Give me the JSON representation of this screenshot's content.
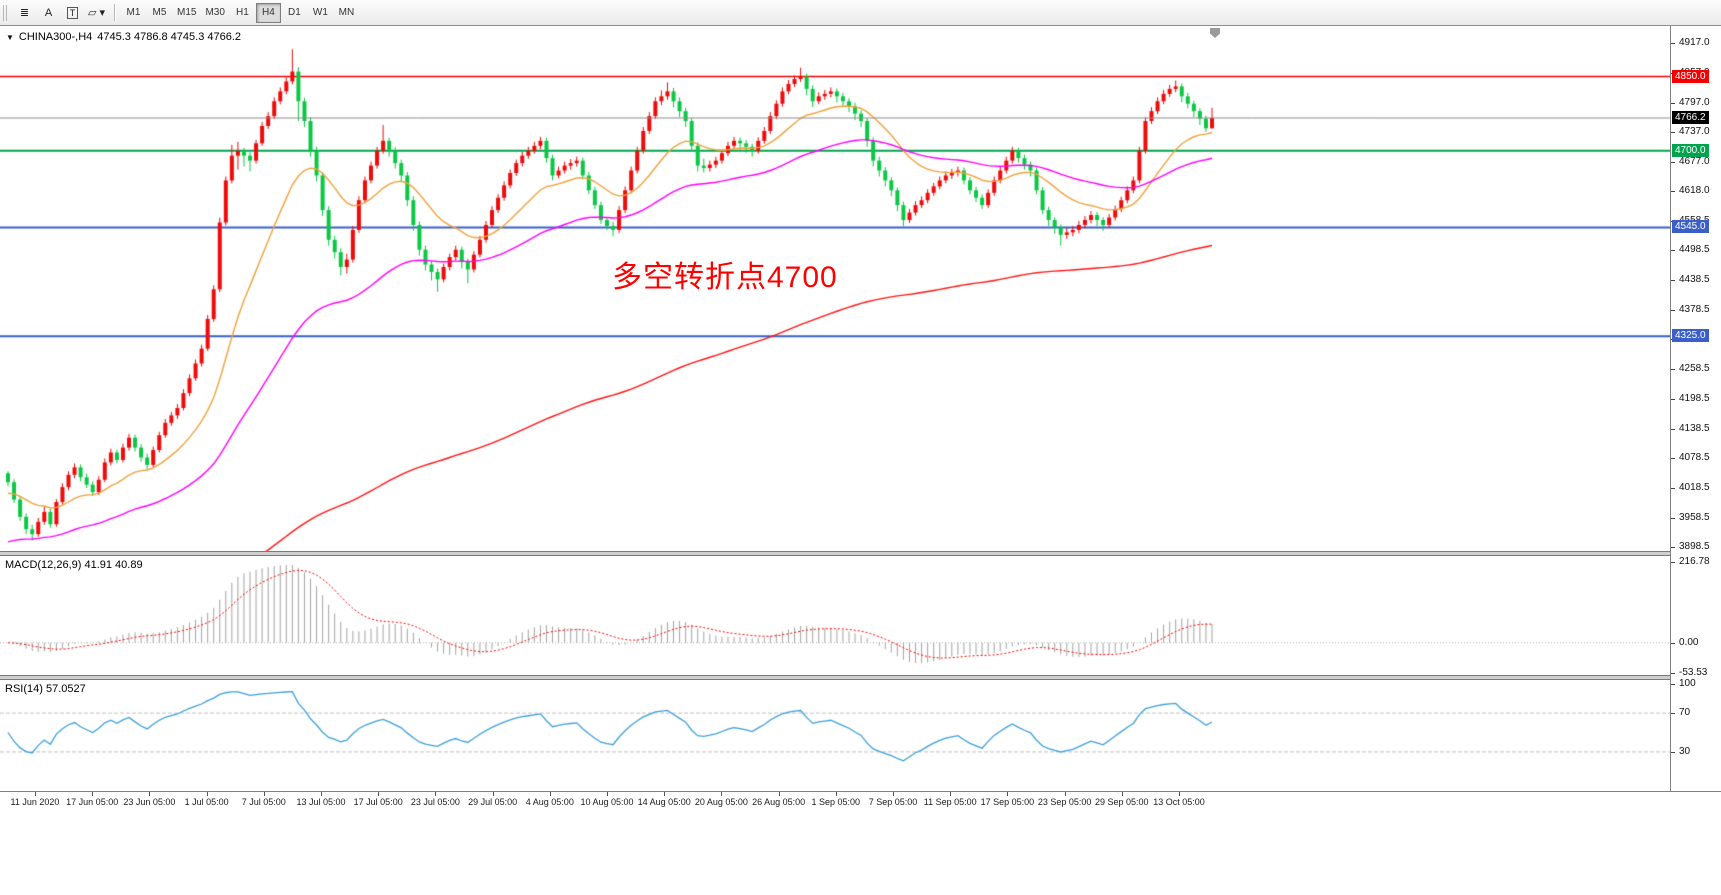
{
  "toolbar": {
    "tools": [
      {
        "name": "line-studies",
        "glyph": "≣"
      },
      {
        "name": "text",
        "glyph": "A"
      },
      {
        "name": "text-label",
        "glyph": "T"
      },
      {
        "name": "shapes",
        "glyph": "▱ ▾"
      }
    ],
    "timeframes": [
      {
        "label": "M1"
      },
      {
        "label": "M5"
      },
      {
        "label": "M15"
      },
      {
        "label": "M30"
      },
      {
        "label": "H1"
      },
      {
        "label": "H4",
        "active": true
      },
      {
        "label": "D1"
      },
      {
        "label": "W1"
      },
      {
        "label": "MN"
      }
    ]
  },
  "symbol_bar": {
    "menu_glyph": "▼",
    "symbol": "CHINA300-,H4",
    "ohlc": "4745.3 4786.8 4745.3 4766.2"
  },
  "chart_data": {
    "type": "candlestick",
    "title": "CHINA300-,H4",
    "price_axis": {
      "ticks": [
        "4917.0",
        "4857.0",
        "4797.0",
        "4737.0",
        "4677.0",
        "4618.0",
        "4558.5",
        "4498.5",
        "4438.5",
        "4378.5",
        "4318.5",
        "4258.5",
        "4198.5",
        "4138.5",
        "4078.5",
        "4018.5",
        "3958.5",
        "3898.5"
      ],
      "y_range": [
        3895,
        4940
      ]
    },
    "hlines": [
      {
        "price": 4850.0,
        "label": "4850.0",
        "color": "#f40000",
        "width": 1.4
      },
      {
        "price": 4700.0,
        "label": "4700.0",
        "color": "#00a44e",
        "width": 2
      },
      {
        "price": 4545.0,
        "label": "4545.0",
        "color": "#3a5fc8",
        "width": 2
      },
      {
        "price": 4325.0,
        "label": "4325.0",
        "color": "#3a5fc8",
        "width": 2
      }
    ],
    "current_price": {
      "value": 4766.2,
      "label": "4766.2",
      "line_color": "#8c8c8c",
      "badge_bg": "#000000"
    },
    "annotation": {
      "text": "多空转折点4700",
      "color": "#ff0000"
    },
    "colors": {
      "up": "#ee0b0b",
      "down": "#0cc744"
    },
    "moving_averages": [
      {
        "period": 18,
        "seed": 4005,
        "color": "#f0a23c"
      },
      {
        "period": 55,
        "seed": 3905,
        "color": "#ff00ff"
      },
      {
        "period": 200,
        "seed": 3700,
        "color": "#ff1414"
      }
    ],
    "candles": [
      [
        4048,
        4052,
        4022,
        4030
      ],
      [
        4030,
        4036,
        3988,
        3995
      ],
      [
        3995,
        4001,
        3952,
        3960
      ],
      [
        3960,
        3967,
        3925,
        3935
      ],
      [
        3935,
        3944,
        3912,
        3925
      ],
      [
        3925,
        3958,
        3920,
        3950
      ],
      [
        3950,
        3980,
        3944,
        3970
      ],
      [
        3970,
        3976,
        3938,
        3945
      ],
      [
        3945,
        3996,
        3940,
        3990
      ],
      [
        3990,
        4028,
        3985,
        4020
      ],
      [
        4020,
        4052,
        4014,
        4045
      ],
      [
        4045,
        4068,
        4038,
        4060
      ],
      [
        4060,
        4066,
        4032,
        4040
      ],
      [
        4040,
        4048,
        4018,
        4025
      ],
      [
        4025,
        4032,
        4002,
        4010
      ],
      [
        4010,
        4042,
        4004,
        4035
      ],
      [
        4035,
        4078,
        4030,
        4070
      ],
      [
        4070,
        4098,
        4064,
        4090
      ],
      [
        4090,
        4096,
        4068,
        4075
      ],
      [
        4075,
        4108,
        4070,
        4100
      ],
      [
        4100,
        4128,
        4094,
        4120
      ],
      [
        4120,
        4126,
        4092,
        4100
      ],
      [
        4100,
        4107,
        4072,
        4080
      ],
      [
        4080,
        4088,
        4056,
        4065
      ],
      [
        4065,
        4102,
        4060,
        4095
      ],
      [
        4095,
        4132,
        4090,
        4125
      ],
      [
        4125,
        4158,
        4120,
        4150
      ],
      [
        4150,
        4172,
        4144,
        4165
      ],
      [
        4165,
        4188,
        4158,
        4180
      ],
      [
        4180,
        4218,
        4175,
        4210
      ],
      [
        4210,
        4248,
        4204,
        4240
      ],
      [
        4240,
        4278,
        4235,
        4270
      ],
      [
        4270,
        4308,
        4264,
        4300
      ],
      [
        4300,
        4368,
        4295,
        4360
      ],
      [
        4360,
        4428,
        4354,
        4420
      ],
      [
        4420,
        4565,
        4414,
        4555
      ],
      [
        4555,
        4648,
        4549,
        4640
      ],
      [
        4640,
        4712,
        4634,
        4690
      ],
      [
        4690,
        4718,
        4662,
        4700
      ],
      [
        4700,
        4706,
        4668,
        4690
      ],
      [
        4690,
        4697,
        4658,
        4680
      ],
      [
        4680,
        4722,
        4674,
        4715
      ],
      [
        4715,
        4758,
        4710,
        4750
      ],
      [
        4750,
        4778,
        4744,
        4770
      ],
      [
        4770,
        4808,
        4764,
        4800
      ],
      [
        4800,
        4828,
        4794,
        4820
      ],
      [
        4820,
        4848,
        4814,
        4840
      ],
      [
        4840,
        4905,
        4834,
        4860
      ],
      [
        4860,
        4869,
        4760,
        4800
      ],
      [
        4800,
        4807,
        4748,
        4760
      ],
      [
        4760,
        4768,
        4688,
        4700
      ],
      [
        4700,
        4708,
        4638,
        4650
      ],
      [
        4650,
        4657,
        4568,
        4580
      ],
      [
        4580,
        4588,
        4508,
        4520
      ],
      [
        4520,
        4528,
        4482,
        4495
      ],
      [
        4495,
        4503,
        4448,
        4465
      ],
      [
        4465,
        4492,
        4452,
        4480
      ],
      [
        4480,
        4548,
        4474,
        4540
      ],
      [
        4540,
        4608,
        4534,
        4600
      ],
      [
        4600,
        4648,
        4594,
        4640
      ],
      [
        4640,
        4678,
        4634,
        4670
      ],
      [
        4670,
        4708,
        4664,
        4700
      ],
      [
        4700,
        4752,
        4694,
        4720
      ],
      [
        4720,
        4726,
        4688,
        4700
      ],
      [
        4700,
        4707,
        4664,
        4675
      ],
      [
        4675,
        4682,
        4638,
        4650
      ],
      [
        4650,
        4657,
        4588,
        4600
      ],
      [
        4600,
        4608,
        4538,
        4550
      ],
      [
        4550,
        4557,
        4488,
        4500
      ],
      [
        4500,
        4508,
        4458,
        4470
      ],
      [
        4470,
        4477,
        4438,
        4455
      ],
      [
        4455,
        4462,
        4415,
        4440
      ],
      [
        4440,
        4472,
        4434,
        4465
      ],
      [
        4465,
        4492,
        4458,
        4485
      ],
      [
        4485,
        4508,
        4478,
        4500
      ],
      [
        4500,
        4506,
        4462,
        4475
      ],
      [
        4475,
        4482,
        4432,
        4460
      ],
      [
        4460,
        4497,
        4454,
        4490
      ],
      [
        4490,
        4528,
        4484,
        4520
      ],
      [
        4520,
        4558,
        4514,
        4550
      ],
      [
        4550,
        4588,
        4544,
        4580
      ],
      [
        4580,
        4612,
        4574,
        4605
      ],
      [
        4605,
        4638,
        4599,
        4630
      ],
      [
        4630,
        4662,
        4624,
        4655
      ],
      [
        4655,
        4682,
        4649,
        4675
      ],
      [
        4675,
        4698,
        4668,
        4690
      ],
      [
        4690,
        4708,
        4684,
        4700
      ],
      [
        4700,
        4718,
        4694,
        4710
      ],
      [
        4710,
        4728,
        4703,
        4720
      ],
      [
        4720,
        4726,
        4676,
        4685
      ],
      [
        4685,
        4692,
        4640,
        4650
      ],
      [
        4650,
        4668,
        4644,
        4660
      ],
      [
        4660,
        4678,
        4654,
        4670
      ],
      [
        4670,
        4683,
        4662,
        4675
      ],
      [
        4675,
        4688,
        4668,
        4680
      ],
      [
        4680,
        4686,
        4642,
        4650
      ],
      [
        4650,
        4657,
        4612,
        4620
      ],
      [
        4620,
        4627,
        4582,
        4590
      ],
      [
        4590,
        4597,
        4552,
        4560
      ],
      [
        4560,
        4566,
        4540,
        4548
      ],
      [
        4548,
        4556,
        4528,
        4540
      ],
      [
        4540,
        4588,
        4534,
        4580
      ],
      [
        4580,
        4628,
        4574,
        4620
      ],
      [
        4620,
        4668,
        4614,
        4660
      ],
      [
        4660,
        4708,
        4654,
        4700
      ],
      [
        4700,
        4748,
        4694,
        4740
      ],
      [
        4740,
        4778,
        4734,
        4770
      ],
      [
        4770,
        4808,
        4764,
        4800
      ],
      [
        4800,
        4822,
        4792,
        4810
      ],
      [
        4810,
        4838,
        4803,
        4820
      ],
      [
        4820,
        4827,
        4788,
        4800
      ],
      [
        4800,
        4808,
        4768,
        4780
      ],
      [
        4780,
        4787,
        4748,
        4760
      ],
      [
        4760,
        4766,
        4698,
        4710
      ],
      [
        4710,
        4717,
        4658,
        4670
      ],
      [
        4670,
        4684,
        4656,
        4665
      ],
      [
        4665,
        4680,
        4658,
        4672
      ],
      [
        4672,
        4688,
        4665,
        4680
      ],
      [
        4680,
        4702,
        4674,
        4695
      ],
      [
        4695,
        4718,
        4689,
        4710
      ],
      [
        4710,
        4728,
        4704,
        4720
      ],
      [
        4720,
        4727,
        4702,
        4715
      ],
      [
        4715,
        4722,
        4696,
        4708
      ],
      [
        4708,
        4714,
        4688,
        4700
      ],
      [
        4700,
        4727,
        4694,
        4720
      ],
      [
        4720,
        4748,
        4714,
        4740
      ],
      [
        4740,
        4778,
        4734,
        4770
      ],
      [
        4770,
        4802,
        4764,
        4795
      ],
      [
        4795,
        4828,
        4789,
        4820
      ],
      [
        4820,
        4843,
        4814,
        4835
      ],
      [
        4835,
        4852,
        4829,
        4845
      ],
      [
        4845,
        4868,
        4839,
        4850
      ],
      [
        4850,
        4856,
        4812,
        4825
      ],
      [
        4825,
        4832,
        4788,
        4800
      ],
      [
        4800,
        4818,
        4794,
        4810
      ],
      [
        4810,
        4823,
        4803,
        4815
      ],
      [
        4815,
        4828,
        4808,
        4820
      ],
      [
        4820,
        4826,
        4798,
        4810
      ],
      [
        4810,
        4817,
        4788,
        4800
      ],
      [
        4800,
        4806,
        4778,
        4790
      ],
      [
        4790,
        4797,
        4762,
        4775
      ],
      [
        4775,
        4782,
        4748,
        4760
      ],
      [
        4760,
        4766,
        4708,
        4720
      ],
      [
        4720,
        4727,
        4668,
        4680
      ],
      [
        4680,
        4688,
        4648,
        4660
      ],
      [
        4660,
        4667,
        4628,
        4640
      ],
      [
        4640,
        4647,
        4608,
        4620
      ],
      [
        4620,
        4626,
        4578,
        4590
      ],
      [
        4590,
        4597,
        4548,
        4560
      ],
      [
        4560,
        4582,
        4554,
        4575
      ],
      [
        4575,
        4598,
        4569,
        4590
      ],
      [
        4590,
        4608,
        4584,
        4600
      ],
      [
        4600,
        4622,
        4594,
        4615
      ],
      [
        4615,
        4635,
        4609,
        4628
      ],
      [
        4628,
        4648,
        4622,
        4640
      ],
      [
        4640,
        4658,
        4634,
        4650
      ],
      [
        4650,
        4663,
        4643,
        4655
      ],
      [
        4655,
        4668,
        4648,
        4660
      ],
      [
        4660,
        4666,
        4632,
        4640
      ],
      [
        4640,
        4647,
        4612,
        4620
      ],
      [
        4620,
        4627,
        4596,
        4605
      ],
      [
        4605,
        4612,
        4582,
        4590
      ],
      [
        4590,
        4622,
        4584,
        4615
      ],
      [
        4615,
        4648,
        4609,
        4640
      ],
      [
        4640,
        4668,
        4634,
        4660
      ],
      [
        4660,
        4688,
        4654,
        4680
      ],
      [
        4680,
        4708,
        4674,
        4700
      ],
      [
        4700,
        4706,
        4676,
        4685
      ],
      [
        4685,
        4692,
        4662,
        4672
      ],
      [
        4672,
        4678,
        4648,
        4660
      ],
      [
        4660,
        4666,
        4612,
        4620
      ],
      [
        4620,
        4627,
        4572,
        4580
      ],
      [
        4580,
        4587,
        4548,
        4560
      ],
      [
        4560,
        4566,
        4532,
        4545
      ],
      [
        4545,
        4551,
        4508,
        4530
      ],
      [
        4530,
        4544,
        4522,
        4535
      ],
      [
        4535,
        4548,
        4527,
        4540
      ],
      [
        4540,
        4558,
        4533,
        4550
      ],
      [
        4550,
        4568,
        4543,
        4560
      ],
      [
        4560,
        4578,
        4553,
        4570
      ],
      [
        4570,
        4576,
        4548,
        4560
      ],
      [
        4560,
        4566,
        4538,
        4550
      ],
      [
        4550,
        4572,
        4544,
        4565
      ],
      [
        4565,
        4589,
        4559,
        4582
      ],
      [
        4582,
        4607,
        4576,
        4600
      ],
      [
        4600,
        4628,
        4594,
        4620
      ],
      [
        4620,
        4648,
        4614,
        4640
      ],
      [
        4640,
        4708,
        4634,
        4700
      ],
      [
        4700,
        4768,
        4694,
        4760
      ],
      [
        4760,
        4788,
        4754,
        4780
      ],
      [
        4780,
        4808,
        4774,
        4800
      ],
      [
        4800,
        4823,
        4794,
        4815
      ],
      [
        4815,
        4833,
        4809,
        4825
      ],
      [
        4825,
        4842,
        4818,
        4830
      ],
      [
        4830,
        4836,
        4798,
        4810
      ],
      [
        4810,
        4817,
        4786,
        4795
      ],
      [
        4795,
        4801,
        4768,
        4780
      ],
      [
        4780,
        4786,
        4752,
        4765
      ],
      [
        4765,
        4771,
        4738,
        4745.3
      ],
      [
        4745.3,
        4786.8,
        4745.3,
        4766.2
      ]
    ],
    "macd": {
      "label": "MACD(12,26,9) 41.91 40.89",
      "fast": 12,
      "slow": 26,
      "signal": 9,
      "axis_ticks": [
        "216.78",
        "0.00",
        "-53.53"
      ],
      "histogram_color": "#a3a3a3",
      "signal_color": "#ff0000"
    },
    "rsi": {
      "label": "RSI(14) 57.0527",
      "period": 14,
      "levels": [
        70,
        30
      ],
      "axis_ticks": [
        "100",
        "70",
        "30"
      ],
      "line_color": "#3d9fdc"
    },
    "time_axis": [
      "11 Jun 2020",
      "17 Jun 05:00",
      "23 Jun 05:00",
      "1 Jul 05:00",
      "7 Jul 05:00",
      "13 Jul 05:00",
      "17 Jul 05:00",
      "23 Jul 05:00",
      "29 Jul 05:00",
      "4 Aug 05:00",
      "10 Aug 05:00",
      "14 Aug 05:00",
      "20 Aug 05:00",
      "26 Aug 05:00",
      "1 Sep 05:00",
      "7 Sep 05:00",
      "11 Sep 05:00",
      "17 Sep 05:00",
      "23 Sep 05:00",
      "29 Sep 05:00",
      "13 Oct 05:00"
    ]
  }
}
